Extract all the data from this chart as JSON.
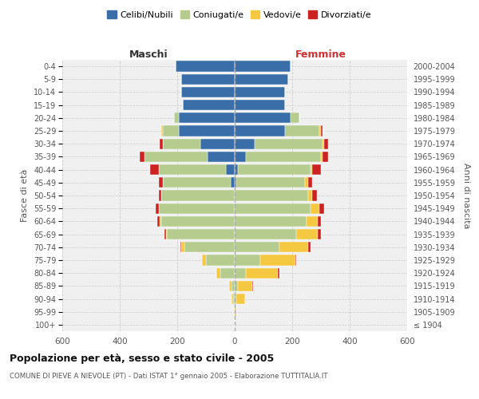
{
  "age_groups": [
    "100+",
    "95-99",
    "90-94",
    "85-89",
    "80-84",
    "75-79",
    "70-74",
    "65-69",
    "60-64",
    "55-59",
    "50-54",
    "45-49",
    "40-44",
    "35-39",
    "30-34",
    "25-29",
    "20-24",
    "15-19",
    "10-14",
    "5-9",
    "0-4"
  ],
  "birth_years": [
    "≤ 1904",
    "1905-1909",
    "1910-1914",
    "1915-1919",
    "1920-1924",
    "1925-1929",
    "1930-1934",
    "1935-1939",
    "1940-1944",
    "1945-1949",
    "1950-1954",
    "1955-1959",
    "1960-1964",
    "1965-1969",
    "1970-1974",
    "1975-1979",
    "1980-1984",
    "1985-1989",
    "1990-1994",
    "1995-1999",
    "2000-2004"
  ],
  "males": {
    "celibi": [
      0,
      0,
      0,
      0,
      0,
      0,
      0,
      0,
      0,
      0,
      0,
      15,
      30,
      95,
      120,
      195,
      195,
      180,
      185,
      185,
      205
    ],
    "coniugati": [
      0,
      0,
      5,
      10,
      50,
      100,
      175,
      235,
      255,
      265,
      255,
      235,
      235,
      220,
      130,
      55,
      15,
      0,
      0,
      0,
      0
    ],
    "vedovi": [
      0,
      0,
      5,
      10,
      15,
      15,
      10,
      5,
      5,
      0,
      0,
      0,
      0,
      0,
      0,
      5,
      0,
      0,
      0,
      0,
      0
    ],
    "divorziati": [
      0,
      0,
      0,
      0,
      0,
      0,
      5,
      5,
      10,
      10,
      10,
      15,
      30,
      15,
      10,
      0,
      0,
      0,
      0,
      0,
      0
    ]
  },
  "females": {
    "nubili": [
      0,
      0,
      0,
      0,
      0,
      0,
      0,
      0,
      0,
      0,
      0,
      5,
      10,
      40,
      70,
      175,
      195,
      175,
      175,
      185,
      195
    ],
    "coniugate": [
      0,
      0,
      5,
      10,
      40,
      90,
      155,
      215,
      250,
      265,
      255,
      240,
      255,
      260,
      235,
      120,
      30,
      0,
      0,
      0,
      0
    ],
    "vedove": [
      0,
      5,
      30,
      50,
      110,
      120,
      100,
      75,
      40,
      30,
      15,
      10,
      5,
      5,
      5,
      5,
      0,
      0,
      0,
      0,
      0
    ],
    "divorziate": [
      0,
      0,
      0,
      5,
      5,
      5,
      10,
      10,
      10,
      15,
      15,
      15,
      30,
      20,
      15,
      5,
      0,
      0,
      0,
      0,
      0
    ]
  },
  "colors": {
    "celibi": "#3a6ea8",
    "coniugati": "#b5cc8e",
    "vedovi": "#f5c842",
    "divorziati": "#cc2222"
  },
  "legend_labels": [
    "Celibi/Nubili",
    "Coniugati/e",
    "Vedovi/e",
    "Divorziati/e"
  ],
  "title": "Popolazione per età, sesso e stato civile - 2005",
  "subtitle": "COMUNE DI PIEVE A NIEVOLE (PT) - Dati ISTAT 1° gennaio 2005 - Elaborazione TUTTITALIA.IT",
  "xlabel_left": "Maschi",
  "xlabel_right": "Femmine",
  "ylabel_left": "Fasce di età",
  "ylabel_right": "Anni di nascita",
  "xlim": 600,
  "bg_color": "#f0f0f0",
  "grid_color": "#cccccc"
}
